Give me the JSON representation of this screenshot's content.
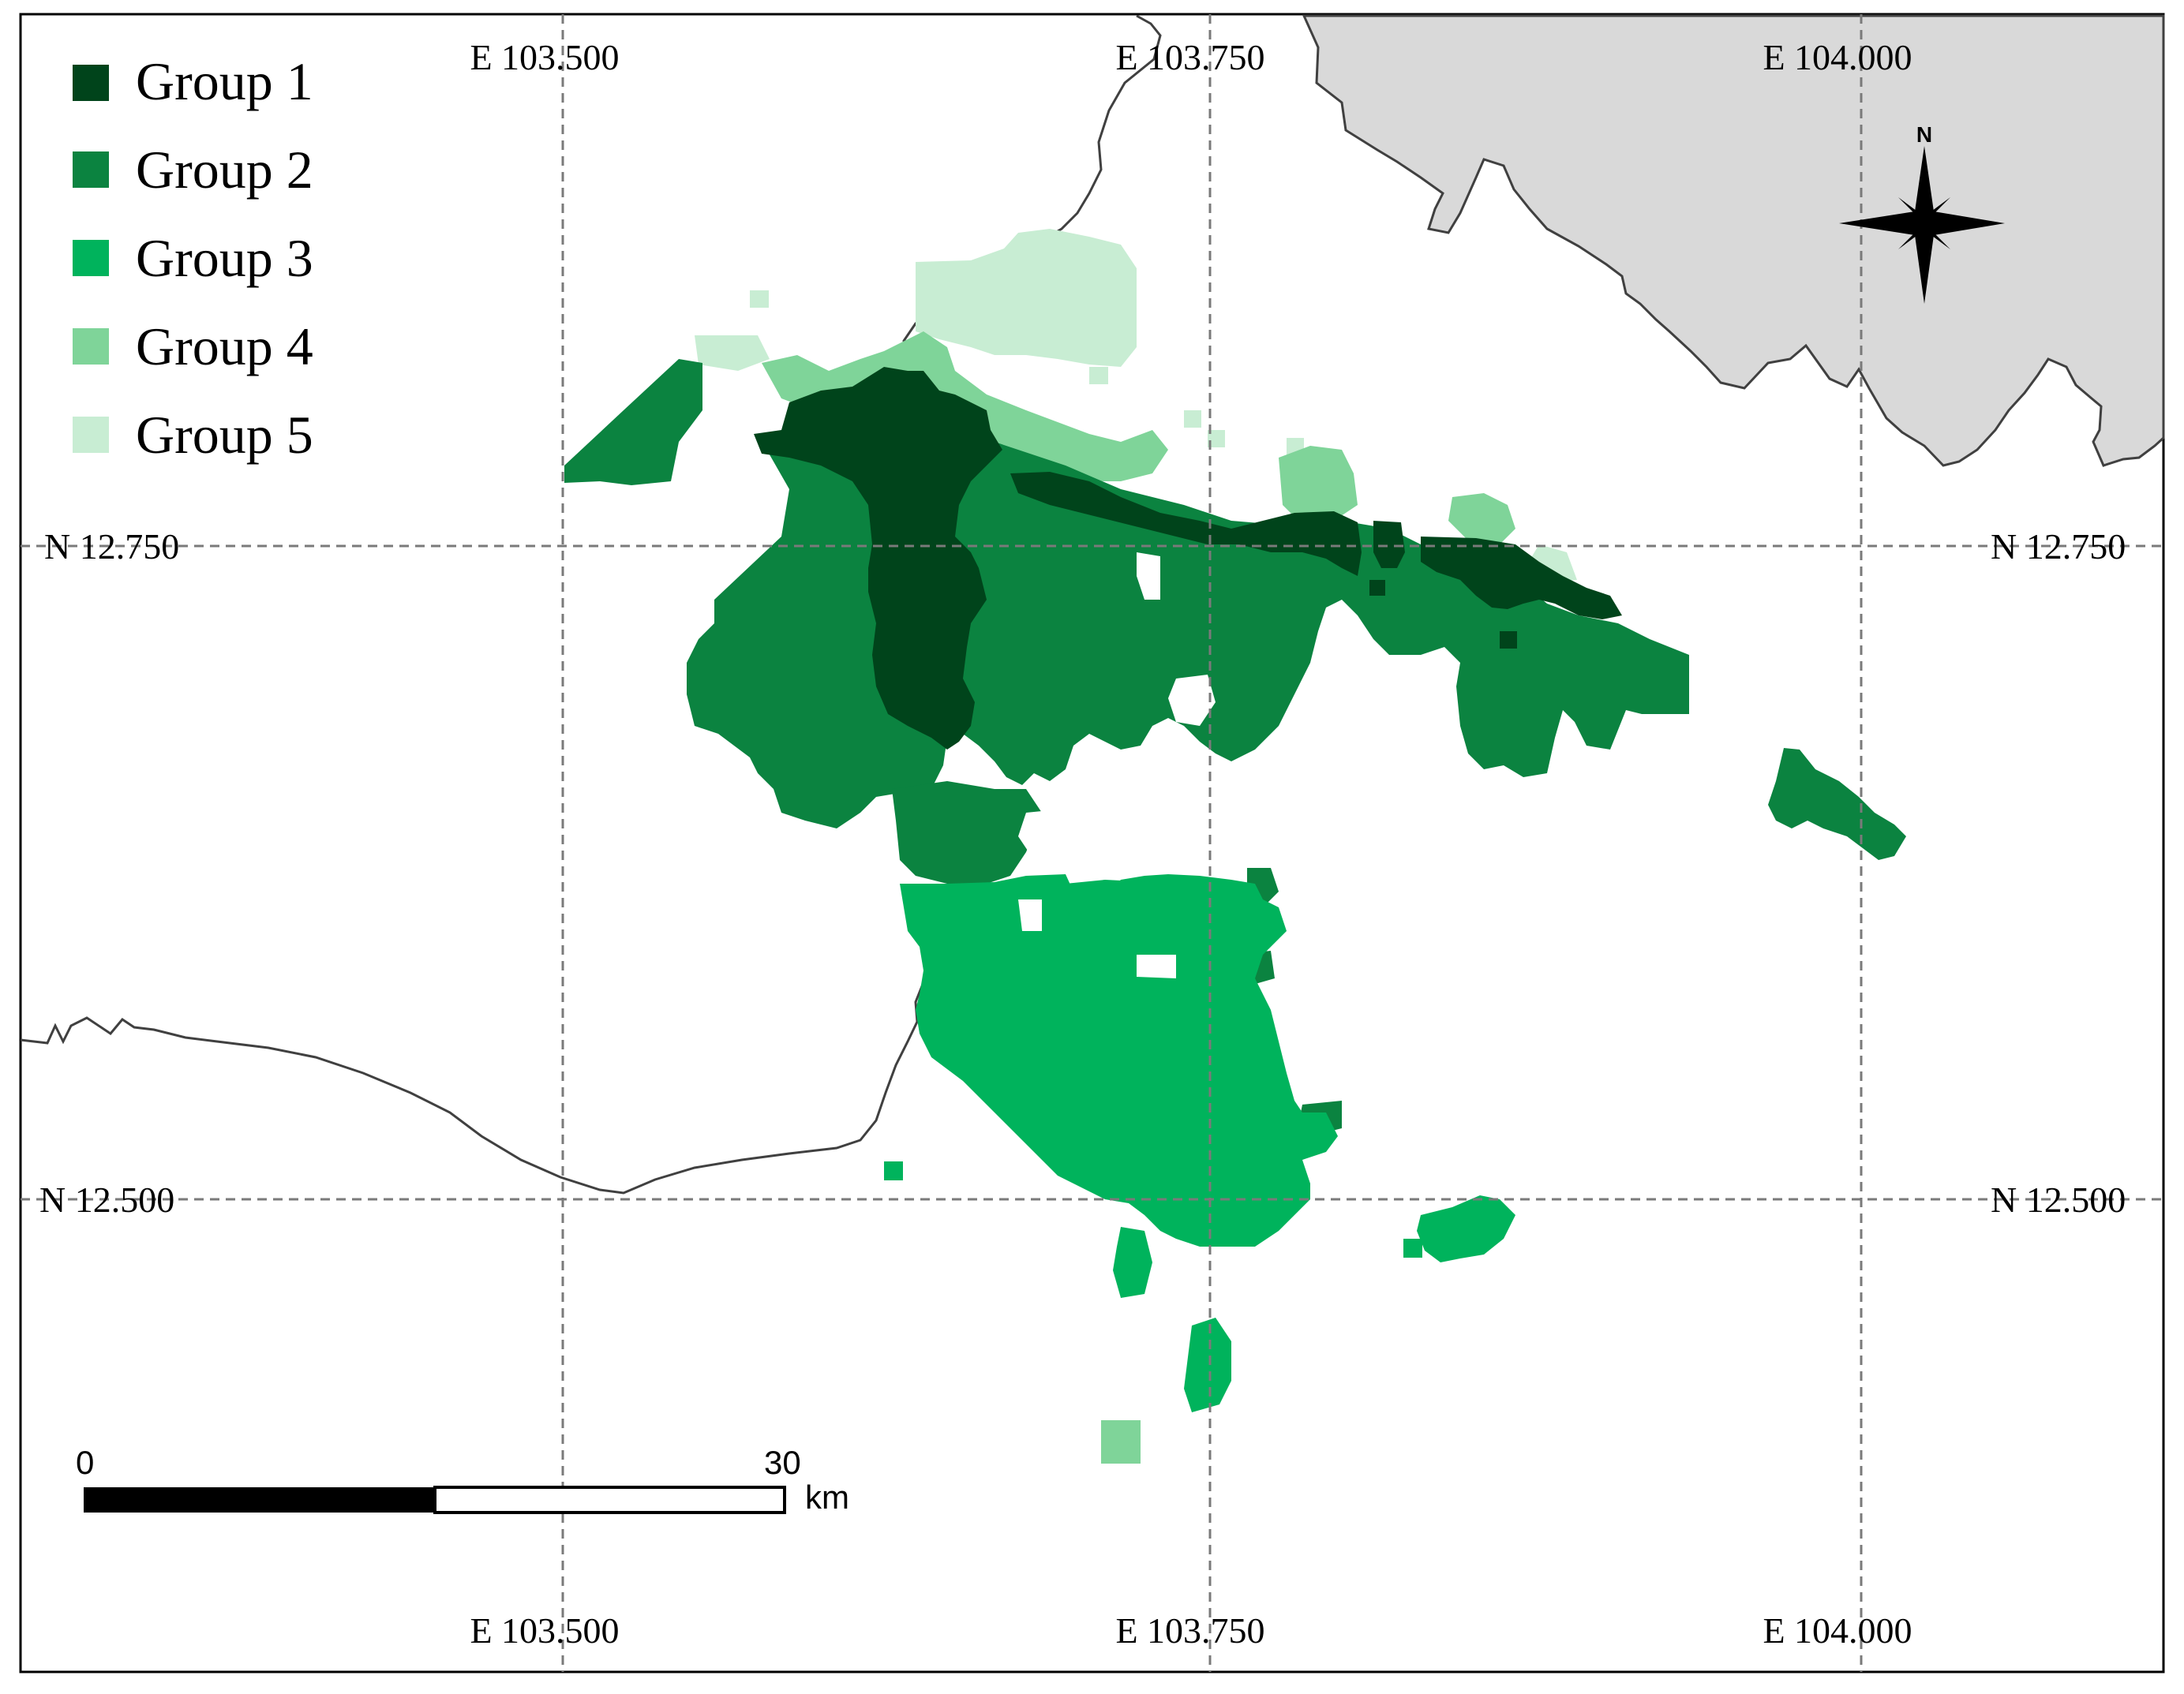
{
  "legend": {
    "items": [
      {
        "label": "Group 1",
        "color": "#00441b"
      },
      {
        "label": "Group 2",
        "color": "#0b8340"
      },
      {
        "label": "Group 3",
        "color": "#00b35c"
      },
      {
        "label": "Group 4",
        "color": "#7fd499"
      },
      {
        "label": "Group 5",
        "color": "#c8edd3"
      }
    ]
  },
  "graticule": {
    "top_lon_labels": [
      "E 103.500",
      "E 103.750",
      "E 104.000"
    ],
    "bottom_lon_labels": [
      "E 103.500",
      "E 103.750",
      "E 104.000"
    ],
    "left_lat_labels": [
      "N 12.750",
      "N 12.500"
    ],
    "right_lat_labels": [
      "N 12.750",
      "N 12.500"
    ]
  },
  "north_arrow": {
    "label": "N"
  },
  "scale_bar": {
    "start_label": "0",
    "end_label": "30",
    "unit_label": "km"
  },
  "colors": {
    "land": "#d9d9d9",
    "coastline": "#404040",
    "grid": "#7a7a7a",
    "frame": "#000000",
    "water": "#ffffff"
  }
}
